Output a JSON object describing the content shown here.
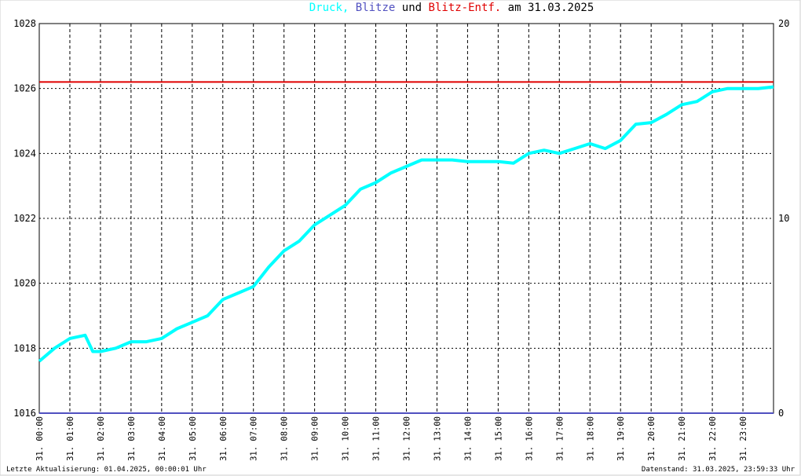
{
  "chart_data": {
    "type": "line",
    "title_connector": "und",
    "title_date": "am 31.03.2025",
    "xlim": [
      0,
      24
    ],
    "xticks": [
      {
        "value": 0,
        "label": "31. 00:00"
      },
      {
        "value": 1,
        "label": "31. 01:00"
      },
      {
        "value": 2,
        "label": "31. 02:00"
      },
      {
        "value": 3,
        "label": "31. 03:00"
      },
      {
        "value": 4,
        "label": "31. 04:00"
      },
      {
        "value": 5,
        "label": "31. 05:00"
      },
      {
        "value": 6,
        "label": "31. 06:00"
      },
      {
        "value": 7,
        "label": "31. 07:00"
      },
      {
        "value": 8,
        "label": "31. 08:00"
      },
      {
        "value": 9,
        "label": "31. 09:00"
      },
      {
        "value": 10,
        "label": "31. 10:00"
      },
      {
        "value": 11,
        "label": "31. 11:00"
      },
      {
        "value": 12,
        "label": "31. 12:00"
      },
      {
        "value": 13,
        "label": "31. 13:00"
      },
      {
        "value": 14,
        "label": "31. 14:00"
      },
      {
        "value": 15,
        "label": "31. 15:00"
      },
      {
        "value": 16,
        "label": "31. 16:00"
      },
      {
        "value": 17,
        "label": "31. 17:00"
      },
      {
        "value": 18,
        "label": "31. 18:00"
      },
      {
        "value": 19,
        "label": "31. 19:00"
      },
      {
        "value": 20,
        "label": "31. 20:00"
      },
      {
        "value": 21,
        "label": "31. 21:00"
      },
      {
        "value": 22,
        "label": "31. 22:00"
      },
      {
        "value": 23,
        "label": "31. 23:00"
      }
    ],
    "ylim": [
      1016,
      1028
    ],
    "yticks": [
      1016,
      1018,
      1020,
      1022,
      1024,
      1026,
      1028
    ],
    "y2lim": [
      0,
      20
    ],
    "y2ticks": [
      0,
      10,
      20
    ],
    "grid": true,
    "series": [
      {
        "name": "Druck,",
        "color": "#00ffff",
        "axis": "y",
        "x": [
          0,
          0.5,
          1,
          1.5,
          1.75,
          2,
          2.5,
          3,
          3.5,
          4,
          4.5,
          5,
          5.5,
          6,
          6.5,
          7,
          7.5,
          8,
          8.5,
          9,
          9.5,
          10,
          10.5,
          11,
          11.5,
          12,
          12.5,
          13,
          13.5,
          14,
          14.5,
          15,
          15.5,
          16,
          16.5,
          17,
          17.5,
          18,
          18.5,
          19,
          19.5,
          20,
          20.5,
          21,
          21.5,
          22,
          22.5,
          23,
          23.5,
          24
        ],
        "values": [
          1017.6,
          1018.0,
          1018.3,
          1018.4,
          1017.9,
          1017.9,
          1018.0,
          1018.2,
          1018.2,
          1018.3,
          1018.6,
          1018.8,
          1019.0,
          1019.5,
          1019.7,
          1019.9,
          1020.5,
          1021.0,
          1021.3,
          1021.8,
          1022.1,
          1022.4,
          1022.9,
          1023.1,
          1023.4,
          1023.6,
          1023.8,
          1023.8,
          1023.8,
          1023.75,
          1023.75,
          1023.75,
          1023.7,
          1024.0,
          1024.1,
          1024.0,
          1024.15,
          1024.3,
          1024.15,
          1024.4,
          1024.9,
          1024.95,
          1025.2,
          1025.5,
          1025.6,
          1025.9,
          1026.0,
          1026.0,
          1026.0,
          1026.05
        ]
      },
      {
        "name": "Blitze",
        "color": "#5050c0",
        "axis": "y2",
        "x": [
          0,
          24
        ],
        "values": [
          0,
          0
        ]
      },
      {
        "name": "Blitz-Entf.",
        "color": "#e00000",
        "axis": "y2",
        "x": [
          0,
          24
        ],
        "values": [
          17,
          17
        ]
      }
    ],
    "footer_left": "Letzte Aktualisierung: 01.04.2025, 00:00:01 Uhr",
    "footer_right": "Datenstand: 31.03.2025, 23:59:33 Uhr"
  }
}
